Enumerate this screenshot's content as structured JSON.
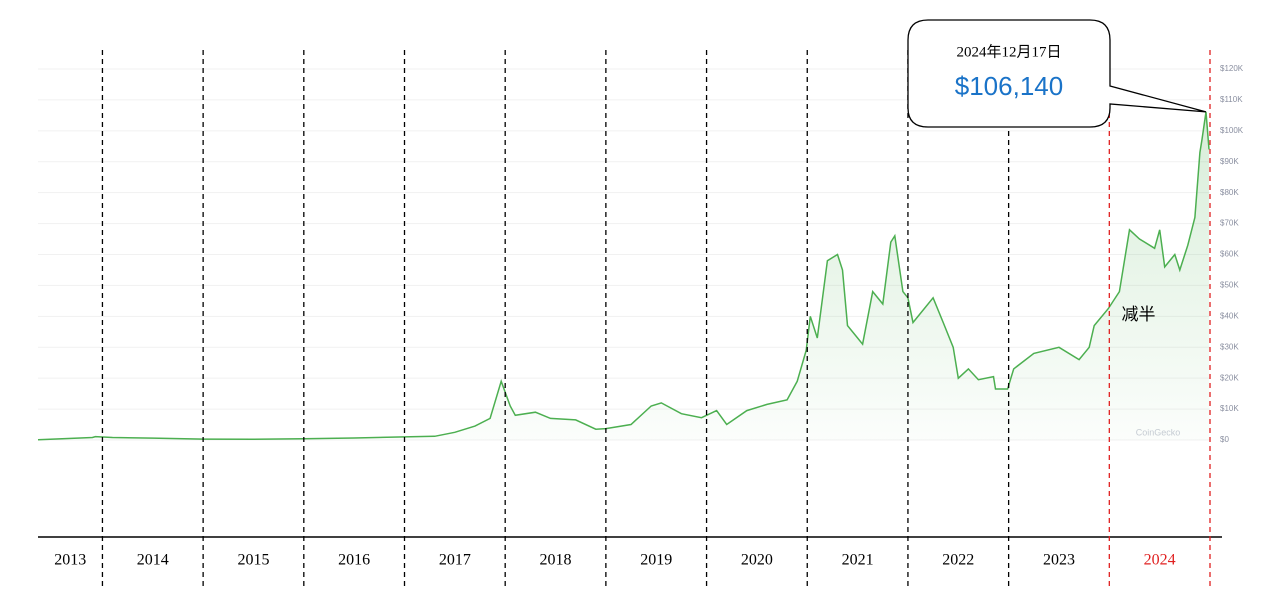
{
  "chart_data": {
    "type": "line",
    "color": "#4caf50",
    "x": [
      2013.36,
      2013.9,
      2013.93,
      2014.1,
      2014.5,
      2015.0,
      2015.5,
      2016.0,
      2016.5,
      2017.0,
      2017.3,
      2017.5,
      2017.7,
      2017.85,
      2017.96,
      2018.05,
      2018.1,
      2018.3,
      2018.45,
      2018.7,
      2018.9,
      2019.0,
      2019.25,
      2019.45,
      2019.55,
      2019.75,
      2019.95,
      2020.1,
      2020.2,
      2020.4,
      2020.6,
      2020.8,
      2020.9,
      2020.99,
      2021.03,
      2021.1,
      2021.2,
      2021.3,
      2021.35,
      2021.4,
      2021.5,
      2021.55,
      2021.65,
      2021.75,
      2021.83,
      2021.87,
      2021.95,
      2022.0,
      2022.05,
      2022.25,
      2022.35,
      2022.45,
      2022.5,
      2022.6,
      2022.7,
      2022.85,
      2022.87,
      2022.99,
      2023.05,
      2023.25,
      2023.5,
      2023.7,
      2023.8,
      2023.85,
      2023.99,
      2024.1,
      2024.2,
      2024.3,
      2024.45,
      2024.5,
      2024.55,
      2024.65,
      2024.7,
      2024.78,
      2024.85,
      2024.9,
      2024.92,
      2024.96,
      2024.99
    ],
    "values": [
      100,
      800,
      1100,
      800,
      600,
      300,
      250,
      400,
      650,
      1000,
      1200,
      2500,
      4500,
      7000,
      19000,
      11000,
      8000,
      9000,
      7000,
      6500,
      3500,
      3700,
      5000,
      11000,
      12000,
      8500,
      7200,
      9500,
      5000,
      9500,
      11500,
      13000,
      19000,
      29000,
      40000,
      33000,
      58000,
      60000,
      55000,
      37000,
      33000,
      31000,
      48000,
      44000,
      64000,
      66000,
      48000,
      46000,
      38000,
      46000,
      38000,
      30000,
      20000,
      23000,
      19500,
      20500,
      16500,
      16500,
      23000,
      28000,
      30000,
      26000,
      30000,
      37000,
      42500,
      48000,
      68000,
      65000,
      62000,
      68000,
      56000,
      60000,
      55000,
      63000,
      72000,
      93000,
      97000,
      106140,
      94000
    ],
    "xlim": [
      2013.36,
      2025.0
    ],
    "xticks": [
      2013,
      2014,
      2015,
      2016,
      2017,
      2018,
      2019,
      2020,
      2021,
      2022,
      2023,
      2024
    ],
    "separators": [
      2014,
      2015,
      2016,
      2017,
      2018,
      2019,
      2020,
      2021,
      2022,
      2023,
      2024,
      2025
    ],
    "highlight_from": 2024,
    "highlight_color": "#e02020",
    "ylim": [
      0,
      120000
    ],
    "yticks": [
      {
        "value": 0,
        "label": "$0"
      },
      {
        "value": 10000,
        "label": "$10K"
      },
      {
        "value": 20000,
        "label": "$20K"
      },
      {
        "value": 30000,
        "label": "$30K"
      },
      {
        "value": 40000,
        "label": "$40K"
      },
      {
        "value": 50000,
        "label": "$50K"
      },
      {
        "value": 60000,
        "label": "$60K"
      },
      {
        "value": 70000,
        "label": "$70K"
      },
      {
        "value": 80000,
        "label": "$80K"
      },
      {
        "value": 90000,
        "label": "$90K"
      },
      {
        "value": 100000,
        "label": "$100K"
      },
      {
        "value": 110000,
        "label": "$110K"
      },
      {
        "value": 120000,
        "label": "$120K"
      }
    ],
    "grid": true,
    "watermark": "CoinGecko",
    "callout": {
      "date": "2024年12月17日",
      "x": 2024.96,
      "value": 106140,
      "value_label": "$106,140"
    },
    "annotation": {
      "text": "减半",
      "x": 2024.3,
      "value": 40000
    }
  }
}
